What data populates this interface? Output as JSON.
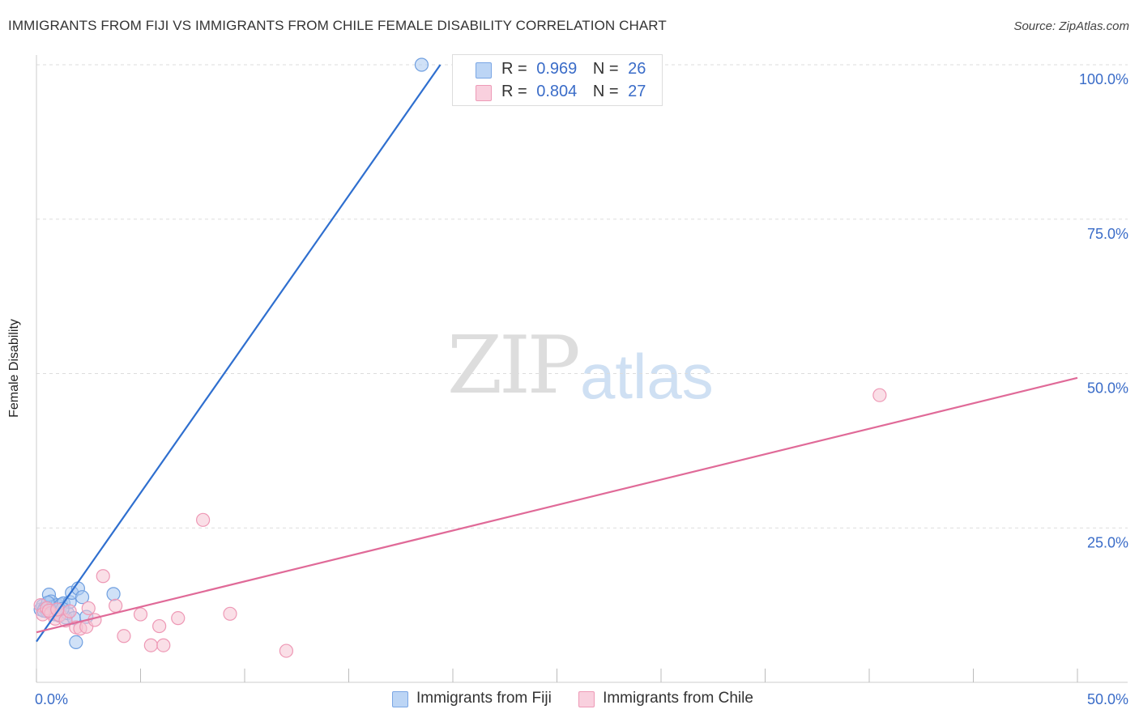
{
  "header": {
    "title": "IMMIGRANTS FROM FIJI VS IMMIGRANTS FROM CHILE FEMALE DISABILITY CORRELATION CHART",
    "source": "Source: ZipAtlas.com"
  },
  "watermark": {
    "zip": "ZIP",
    "atlas": "atlas"
  },
  "legend": {
    "fiji": {
      "r_label": "R =",
      "r_value": "0.969",
      "n_label": "N =",
      "n_value": "26"
    },
    "chile": {
      "r_label": "R =",
      "r_value": "0.804",
      "n_label": "N =",
      "n_value": "27"
    }
  },
  "colors": {
    "fiji_fill": "#a9c8f0",
    "fiji_stroke": "#6f9fe0",
    "fiji_line": "#2f6fcf",
    "chile_fill": "#f6c4d4",
    "chile_stroke": "#ee98b5",
    "chile_line": "#e06a98",
    "tick_text": "#3a6cc8",
    "grid": "#dddddd"
  },
  "chart_data": {
    "type": "scatter",
    "title": "IMMIGRANTS FROM FIJI VS IMMIGRANTS FROM CHILE FEMALE DISABILITY CORRELATION CHART",
    "xlabel": "",
    "ylabel": "Female Disability",
    "xlim": [
      0,
      50
    ],
    "ylim": [
      0,
      100
    ],
    "x_tick_labels": [
      {
        "value": 0,
        "label": "0.0%"
      },
      {
        "value": 50,
        "label": "50.0%"
      }
    ],
    "y_tick_labels": [
      {
        "value": 25,
        "label": "25.0%"
      },
      {
        "value": 50,
        "label": "50.0%"
      },
      {
        "value": 75,
        "label": "75.0%"
      },
      {
        "value": 100,
        "label": "100.0%"
      }
    ],
    "x_minor_ticks": [
      0,
      5,
      10,
      15,
      20,
      25,
      30,
      35,
      40,
      45,
      50
    ],
    "grid": true,
    "legend_position": "top-center",
    "series": [
      {
        "name": "Immigrants from Fiji",
        "color": "#a9c8f0",
        "points": [
          [
            0.2,
            11.8
          ],
          [
            0.3,
            12.4
          ],
          [
            0.4,
            12.0
          ],
          [
            0.5,
            11.5
          ],
          [
            0.6,
            14.2
          ],
          [
            0.7,
            13.1
          ],
          [
            0.8,
            12.2
          ],
          [
            0.9,
            11.0
          ],
          [
            1.0,
            12.5
          ],
          [
            1.1,
            10.8
          ],
          [
            1.2,
            12.6
          ],
          [
            1.3,
            12.8
          ],
          [
            1.4,
            10.5
          ],
          [
            1.5,
            11.2
          ],
          [
            1.6,
            13.0
          ],
          [
            1.7,
            14.5
          ],
          [
            1.8,
            10.4
          ],
          [
            1.9,
            6.5
          ],
          [
            2.0,
            15.2
          ],
          [
            2.2,
            13.8
          ],
          [
            2.4,
            10.6
          ],
          [
            3.7,
            14.3
          ],
          [
            0.35,
            11.6
          ],
          [
            0.55,
            12.9
          ],
          [
            1.25,
            11.9
          ],
          [
            18.5,
            100.0
          ]
        ],
        "trendline": {
          "x": [
            0.0,
            19.4
          ],
          "y": [
            6.6,
            100.0
          ]
        }
      },
      {
        "name": "Immigrants from Chile",
        "color": "#f6c4d4",
        "points": [
          [
            0.2,
            12.5
          ],
          [
            0.3,
            11.0
          ],
          [
            0.5,
            12.0
          ],
          [
            0.7,
            11.2
          ],
          [
            0.9,
            10.3
          ],
          [
            1.1,
            10.9
          ],
          [
            1.4,
            10.0
          ],
          [
            1.6,
            11.5
          ],
          [
            1.9,
            8.9
          ],
          [
            2.1,
            8.7
          ],
          [
            2.4,
            9.0
          ],
          [
            2.5,
            12.0
          ],
          [
            2.8,
            10.1
          ],
          [
            3.2,
            17.2
          ],
          [
            3.8,
            12.4
          ],
          [
            4.2,
            7.5
          ],
          [
            5.0,
            11.0
          ],
          [
            5.5,
            6.0
          ],
          [
            5.9,
            9.1
          ],
          [
            6.1,
            6.0
          ],
          [
            6.8,
            10.4
          ],
          [
            8.0,
            26.3
          ],
          [
            9.3,
            11.1
          ],
          [
            12.0,
            5.1
          ],
          [
            40.5,
            46.5
          ],
          [
            0.6,
            11.6
          ],
          [
            1.0,
            11.8
          ]
        ],
        "trendline": {
          "x": [
            0.0,
            50.0
          ],
          "y": [
            8.1,
            49.3
          ]
        }
      }
    ]
  },
  "bottom_legend": {
    "fiji_label": "Immigrants from Fiji",
    "chile_label": "Immigrants from Chile"
  }
}
